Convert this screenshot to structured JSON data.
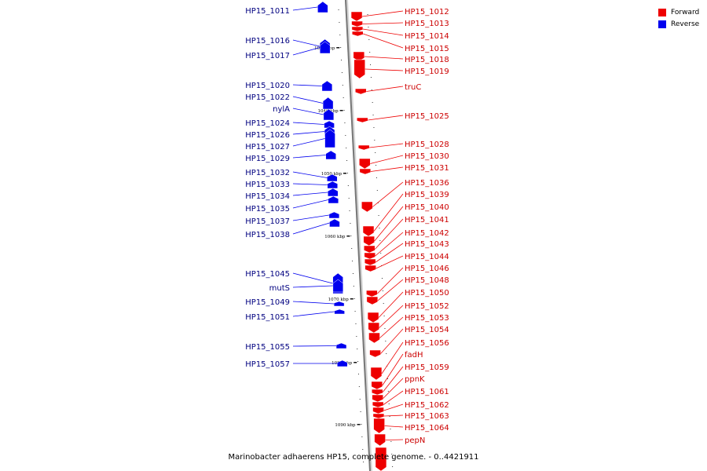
{
  "legend": {
    "forward": {
      "label": "Forward",
      "color": "#ee0000"
    },
    "reverse": {
      "label": "Reverse",
      "color": "#0000ee"
    }
  },
  "caption": "Marinobacter adhaerens HP15, complete genome. - 0..4421911",
  "ruler": [
    "1030 kbp",
    "1040 kbp",
    "1050 kbp",
    "1060 kbp",
    "1070 kbp",
    "1080 kbp",
    "1090 kbp"
  ],
  "reverse_genes": [
    "HP15_1011",
    "HP15_1016",
    "HP15_1017",
    "HP15_1020",
    "HP15_1022",
    "nylA",
    "HP15_1024",
    "HP15_1026",
    "HP15_1027",
    "HP15_1029",
    "HP15_1032",
    "HP15_1033",
    "HP15_1034",
    "HP15_1035",
    "HP15_1037",
    "HP15_1038",
    "HP15_1045",
    "mutS",
    "HP15_1049",
    "HP15_1051",
    "HP15_1055",
    "HP15_1057"
  ],
  "forward_genes": [
    "HP15_1012",
    "HP15_1013",
    "HP15_1014",
    "HP15_1015",
    "HP15_1018",
    "HP15_1019",
    "truC",
    "HP15_1025",
    "HP15_1028",
    "HP15_1030",
    "HP15_1031",
    "HP15_1036",
    "HP15_1039",
    "HP15_1040",
    "HP15_1041",
    "HP15_1042",
    "HP15_1043",
    "HP15_1044",
    "HP15_1046",
    "HP15_1048",
    "HP15_1050",
    "HP15_1052",
    "HP15_1053",
    "HP15_1054",
    "HP15_1056",
    "fadH",
    "HP15_1059",
    "ppnK",
    "HP15_1061",
    "HP15_1062",
    "HP15_1063",
    "HP15_1064",
    "pepN"
  ]
}
